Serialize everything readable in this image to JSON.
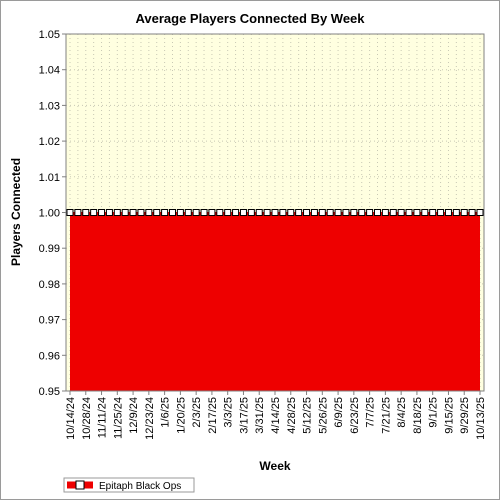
{
  "chart_data": {
    "type": "area",
    "title": "Average Players Connected By Week",
    "xlabel": "Week",
    "ylabel": "Players Connected",
    "ylim": [
      0.95,
      1.05
    ],
    "y_ticks": [
      "0.95",
      "0.96",
      "0.97",
      "0.98",
      "0.99",
      "1.00",
      "1.01",
      "1.02",
      "1.03",
      "1.04",
      "1.05"
    ],
    "x": [
      "10/14/24",
      "10/21/24",
      "10/28/24",
      "11/4/24",
      "11/11/24",
      "11/18/24",
      "11/25/24",
      "12/2/24",
      "12/9/24",
      "12/16/24",
      "12/23/24",
      "12/30/24",
      "1/6/25",
      "1/13/25",
      "1/20/25",
      "1/27/25",
      "2/3/25",
      "2/10/25",
      "2/17/25",
      "2/24/25",
      "3/3/25",
      "3/10/25",
      "3/17/25",
      "3/24/25",
      "3/31/25",
      "4/7/25",
      "4/14/25",
      "4/21/25",
      "4/28/25",
      "5/5/25",
      "5/12/25",
      "5/19/25",
      "5/26/25",
      "6/2/25",
      "6/9/25",
      "6/16/25",
      "6/23/25",
      "6/30/25",
      "7/7/25",
      "7/14/25",
      "7/21/25",
      "7/28/25",
      "8/4/25",
      "8/11/25",
      "8/18/25",
      "8/25/25",
      "9/1/25",
      "9/8/25",
      "9/15/25",
      "9/22/25",
      "9/29/25",
      "10/6/25",
      "10/13/25"
    ],
    "x_tick_labels": [
      "10/14/24",
      "10/28/24",
      "11/11/24",
      "11/25/24",
      "12/9/24",
      "12/23/24",
      "1/6/25",
      "1/20/25",
      "2/3/25",
      "2/17/25",
      "3/3/25",
      "3/17/25",
      "3/31/25",
      "4/14/25",
      "4/28/25",
      "5/12/25",
      "5/26/25",
      "6/9/25",
      "6/23/25",
      "7/7/25",
      "7/21/25",
      "8/4/25",
      "8/18/25",
      "9/1/25",
      "9/15/25",
      "9/29/25",
      "10/13/25"
    ],
    "series": [
      {
        "name": "Epitaph Black Ops",
        "color": "#ee0000",
        "values": [
          1,
          1,
          1,
          1,
          1,
          1,
          1,
          1,
          1,
          1,
          1,
          1,
          1,
          1,
          1,
          1,
          1,
          1,
          1,
          1,
          1,
          1,
          1,
          1,
          1,
          1,
          1,
          1,
          1,
          1,
          1,
          1,
          1,
          1,
          1,
          1,
          1,
          1,
          1,
          1,
          1,
          1,
          1,
          1,
          1,
          1,
          1,
          1,
          1,
          1,
          1,
          1,
          1
        ]
      }
    ],
    "grid": true,
    "plot_background": "#ffffe0",
    "legend_position": "bottom-left"
  }
}
